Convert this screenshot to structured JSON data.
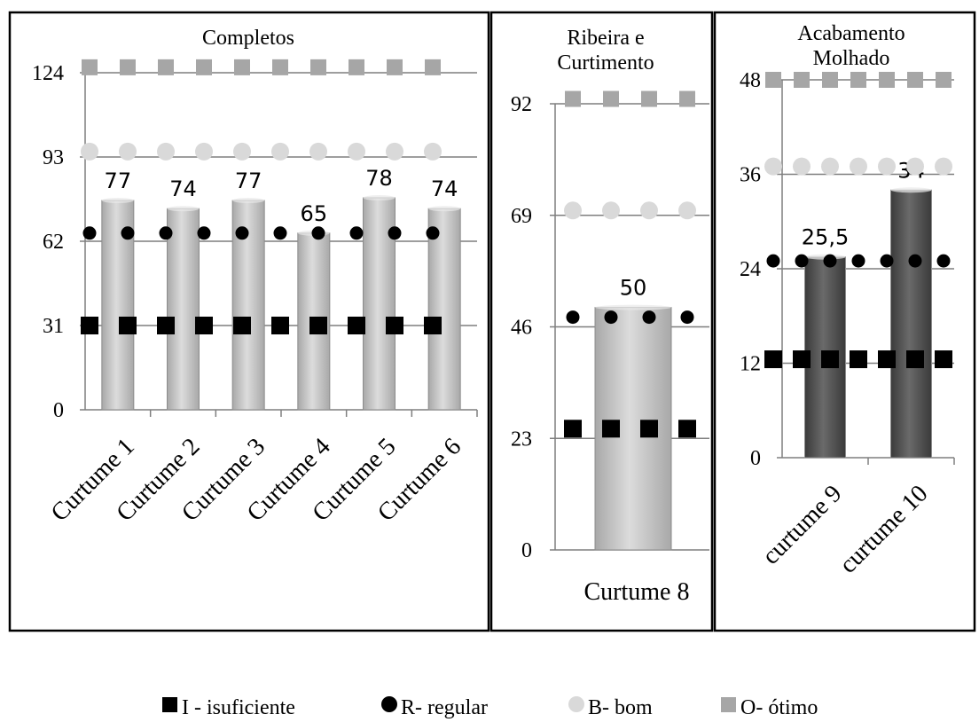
{
  "chart_data": [
    {
      "type": "bar",
      "title": "Completos",
      "categories": [
        "Curtume 1",
        "Curtume 2",
        "Curtume 3",
        "Curtume 4",
        "Curtume 5",
        "Curtume 6"
      ],
      "values": [
        77,
        74,
        77,
        65,
        78,
        74
      ],
      "data_labels": [
        "77",
        "74",
        "77",
        "65",
        "78",
        "74"
      ],
      "yticks": [
        "0",
        "31",
        "62",
        "93",
        "124"
      ],
      "ylim": [
        0,
        124
      ],
      "bar_color": "#c9c9c9",
      "thresholds": [
        {
          "name": "I - isuficiente",
          "value": 31
        },
        {
          "name": "R- regular",
          "value": 65
        },
        {
          "name": "B- bom",
          "value": 95
        },
        {
          "name": "O- ótimo",
          "value": 126
        }
      ]
    },
    {
      "type": "bar",
      "title": "Ribeira e Curtimento",
      "title_lines": [
        "Ribeira e",
        "Curtimento"
      ],
      "categories": [
        "Curtume 8"
      ],
      "values": [
        50
      ],
      "data_labels": [
        "50"
      ],
      "yticks": [
        "0",
        "23",
        "46",
        "69",
        "92"
      ],
      "ylim": [
        0,
        92
      ],
      "bar_color": "#c9c9c9",
      "thresholds": [
        {
          "name": "I - isuficiente",
          "value": 25
        },
        {
          "name": "R- regular",
          "value": 48
        },
        {
          "name": "B- bom",
          "value": 70
        },
        {
          "name": "O- ótimo",
          "value": 93
        }
      ]
    },
    {
      "type": "bar",
      "title": "Acabamento Molhado",
      "title_lines": [
        "Acabamento",
        "Molhado"
      ],
      "categories": [
        "curtume 9",
        "curtume 10"
      ],
      "values": [
        25.5,
        34
      ],
      "data_labels": [
        "25,5",
        "34"
      ],
      "yticks": [
        "0",
        "12",
        "24",
        "36",
        "48"
      ],
      "ylim": [
        0,
        48
      ],
      "bar_color": "#555555",
      "thresholds": [
        {
          "name": "I - isuficiente",
          "value": 12.5
        },
        {
          "name": "R- regular",
          "value": 25
        },
        {
          "name": "B- bom",
          "value": 37
        },
        {
          "name": "O- ótimo",
          "value": 48
        }
      ]
    }
  ],
  "legend": {
    "placement": "bottom",
    "items": [
      {
        "label": "I - isuficiente",
        "marker": "square",
        "color": "#000000"
      },
      {
        "label": "R- regular",
        "marker": "circle",
        "color": "#000000"
      },
      {
        "label": "B- bom",
        "marker": "circle",
        "color": "#d9d9d9"
      },
      {
        "label": "O- ótimo",
        "marker": "square",
        "color": "#a6a6a6"
      }
    ]
  }
}
